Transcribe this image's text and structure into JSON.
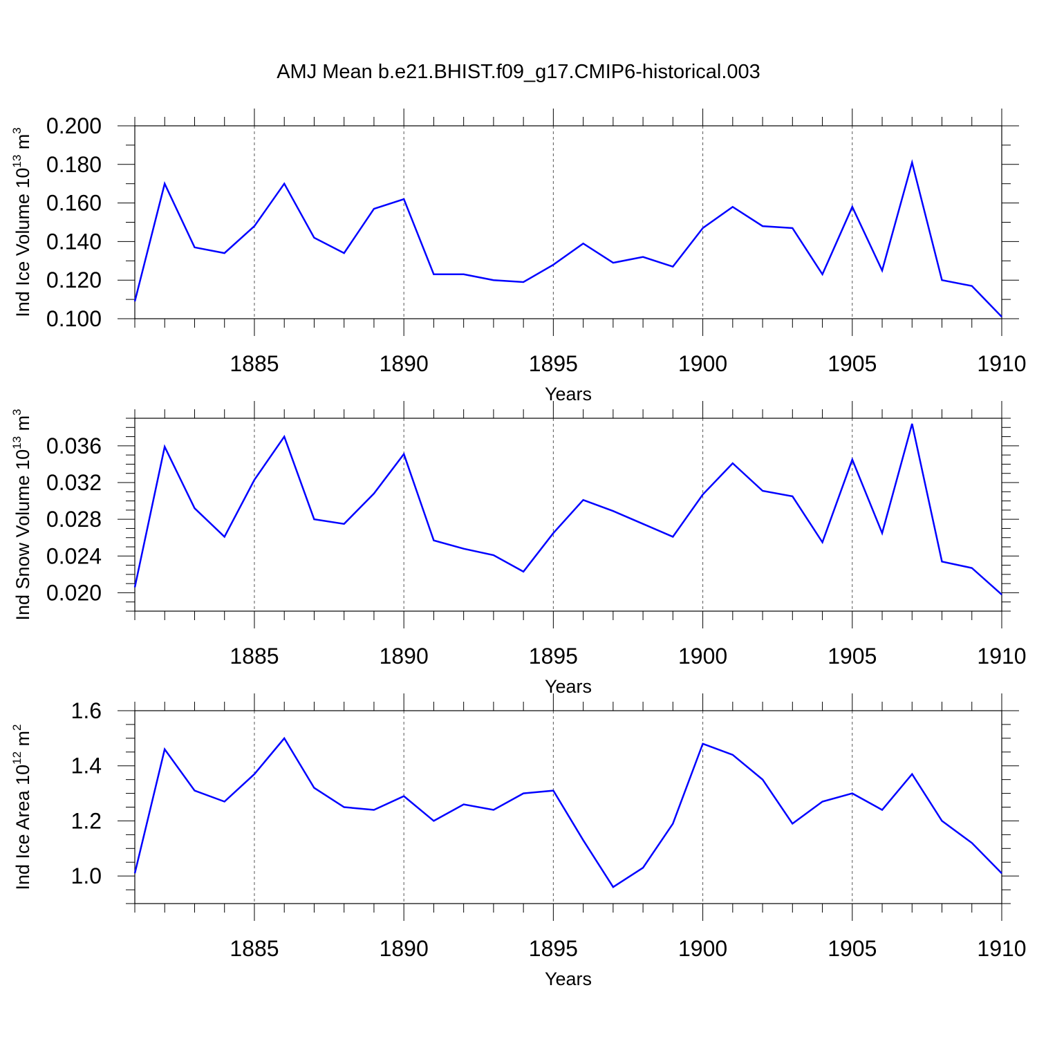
{
  "title": "AMJ Mean b.e21.BHIST.f09_g17.CMIP6-historical.003",
  "colors": {
    "line": "#0000ff",
    "axis": "#000000",
    "grid": "#555555"
  },
  "chart_data": [
    {
      "type": "line",
      "name": "ice-volume",
      "ylabel": {
        "prefix": "Ind Ice Volume 10",
        "exp": "13",
        "unit": " m",
        "unit_exp": "3"
      },
      "xlabel": "Years",
      "xlim": [
        1881,
        1910
      ],
      "ylim": [
        0.1,
        0.2
      ],
      "xticks": [
        1885,
        1890,
        1895,
        1900,
        1905,
        1910
      ],
      "yticks": [
        0.1,
        0.12,
        0.14,
        0.16,
        0.18,
        0.2
      ],
      "ytick_labels": [
        "0.100",
        "0.120",
        "0.140",
        "0.160",
        "0.180",
        "0.200"
      ],
      "yminor": 0.01,
      "grid": "vertical dashed at major x ticks",
      "x": [
        1881,
        1882,
        1883,
        1884,
        1885,
        1886,
        1887,
        1888,
        1889,
        1890,
        1891,
        1892,
        1893,
        1894,
        1895,
        1896,
        1897,
        1898,
        1899,
        1900,
        1901,
        1902,
        1903,
        1904,
        1905,
        1906,
        1907,
        1908,
        1909,
        1910
      ],
      "values": [
        0.109,
        0.17,
        0.137,
        0.134,
        0.148,
        0.17,
        0.142,
        0.134,
        0.157,
        0.162,
        0.123,
        0.123,
        0.12,
        0.119,
        0.128,
        0.139,
        0.129,
        0.132,
        0.127,
        0.147,
        0.158,
        0.148,
        0.147,
        0.123,
        0.158,
        0.125,
        0.181,
        0.12,
        0.117,
        0.101
      ]
    },
    {
      "type": "line",
      "name": "snow-volume",
      "ylabel": {
        "prefix": "Ind Snow Volume 10",
        "exp": "13",
        "unit": " m",
        "unit_exp": "3"
      },
      "xlabel": "Years",
      "xlim": [
        1881,
        1910
      ],
      "ylim": [
        0.018,
        0.039
      ],
      "xticks": [
        1885,
        1890,
        1895,
        1900,
        1905,
        1910
      ],
      "yticks": [
        0.02,
        0.024,
        0.028,
        0.032,
        0.036
      ],
      "ytick_labels": [
        "0.020",
        "0.024",
        "0.028",
        "0.032",
        "0.036"
      ],
      "yminor": 0.001,
      "grid": "vertical dashed at major x ticks",
      "x": [
        1881,
        1882,
        1883,
        1884,
        1885,
        1886,
        1887,
        1888,
        1889,
        1890,
        1891,
        1892,
        1893,
        1894,
        1895,
        1896,
        1897,
        1898,
        1899,
        1900,
        1901,
        1902,
        1903,
        1904,
        1905,
        1906,
        1907,
        1908,
        1909,
        1910
      ],
      "values": [
        0.0206,
        0.0359,
        0.0292,
        0.0261,
        0.0323,
        0.037,
        0.028,
        0.0275,
        0.0308,
        0.0351,
        0.0257,
        0.0248,
        0.0241,
        0.0223,
        0.0265,
        0.0301,
        0.0289,
        0.0275,
        0.0261,
        0.0307,
        0.0341,
        0.0311,
        0.0305,
        0.0255,
        0.0345,
        0.0265,
        0.0384,
        0.0234,
        0.0227,
        0.0198
      ]
    },
    {
      "type": "line",
      "name": "ice-area",
      "ylabel": {
        "prefix": "Ind Ice Area 10",
        "exp": "12",
        "unit": " m",
        "unit_exp": "2"
      },
      "xlabel": "Years",
      "xlim": [
        1881,
        1910
      ],
      "ylim": [
        0.9,
        1.6
      ],
      "xticks": [
        1885,
        1890,
        1895,
        1900,
        1905,
        1910
      ],
      "yticks": [
        1.0,
        1.2,
        1.4,
        1.6
      ],
      "ytick_labels": [
        "1.0",
        "1.2",
        "1.4",
        "1.6"
      ],
      "yminor": 0.05,
      "grid": "vertical dashed at major x ticks",
      "x": [
        1881,
        1882,
        1883,
        1884,
        1885,
        1886,
        1887,
        1888,
        1889,
        1890,
        1891,
        1892,
        1893,
        1894,
        1895,
        1896,
        1897,
        1898,
        1899,
        1900,
        1901,
        1902,
        1903,
        1904,
        1905,
        1906,
        1907,
        1908,
        1909,
        1910
      ],
      "values": [
        1.01,
        1.46,
        1.31,
        1.27,
        1.37,
        1.5,
        1.32,
        1.25,
        1.24,
        1.29,
        1.2,
        1.26,
        1.24,
        1.3,
        1.31,
        1.13,
        0.96,
        1.03,
        1.19,
        1.48,
        1.44,
        1.35,
        1.19,
        1.27,
        1.3,
        1.24,
        1.37,
        1.2,
        1.12,
        1.01
      ]
    }
  ]
}
